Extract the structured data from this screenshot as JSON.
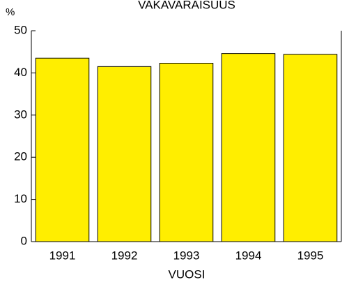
{
  "chart_data": {
    "type": "bar",
    "title": "VAKAVARAISUUS",
    "y_label": "%",
    "x_label": "VUOSI",
    "categories": [
      "1991",
      "1992",
      "1993",
      "1994",
      "1995"
    ],
    "values": [
      43.5,
      41.5,
      42.3,
      44.6,
      44.4
    ],
    "color": "#ffee00",
    "ylim": [
      0,
      50
    ],
    "yticks": [
      0,
      10,
      20,
      30,
      40,
      50
    ],
    "grid": false
  }
}
